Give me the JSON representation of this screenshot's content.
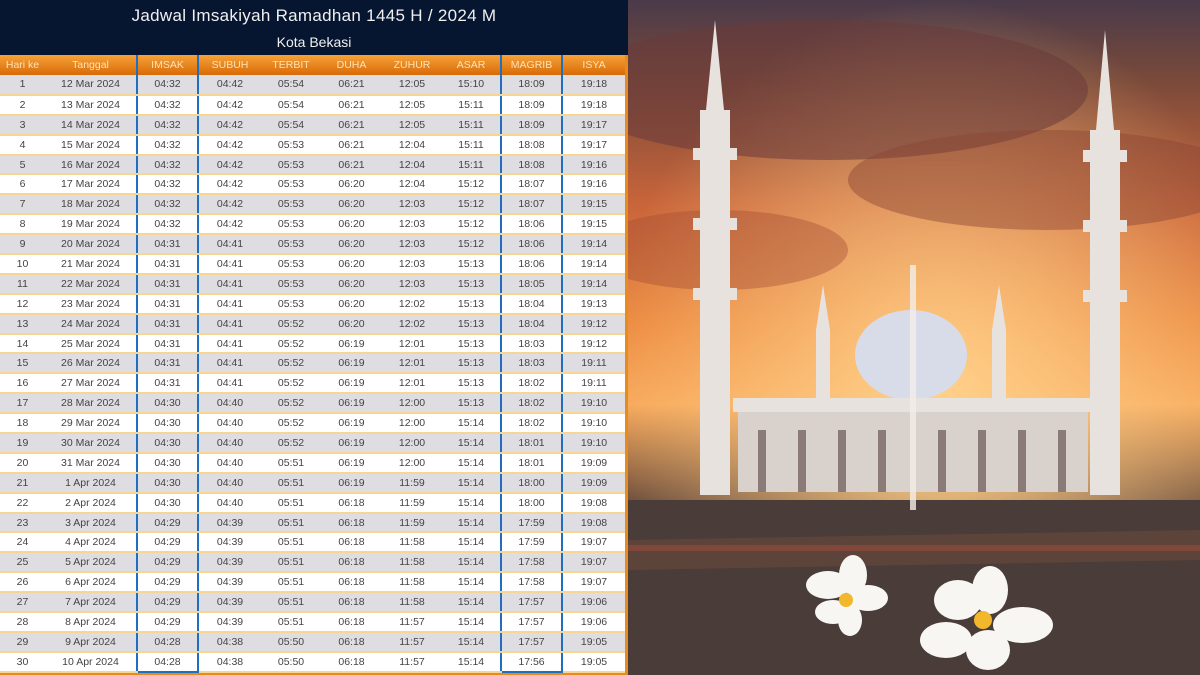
{
  "header": {
    "title": "Jadwal Imsakiyah Ramadhan 1445 H / 2024 M",
    "subtitle": "Kota Bekasi"
  },
  "columns": [
    "Hari ke",
    "Tanggal",
    "IMSAK",
    "SUBUH",
    "TERBIT",
    "DUHA",
    "ZUHUR",
    "ASAR",
    "MAGRIB",
    "ISYA"
  ],
  "highlighted_columns": [
    "IMSAK",
    "MAGRIB"
  ],
  "colors": {
    "banner": "#061530",
    "header_orange": "#e98a1d",
    "highlight_border": "#1e6fc0"
  },
  "rows": [
    [
      "1",
      "12 Mar 2024",
      "04:32",
      "04:42",
      "05:54",
      "06:21",
      "12:05",
      "15:10",
      "18:09",
      "19:18"
    ],
    [
      "2",
      "13 Mar 2024",
      "04:32",
      "04:42",
      "05:54",
      "06:21",
      "12:05",
      "15:11",
      "18:09",
      "19:18"
    ],
    [
      "3",
      "14 Mar 2024",
      "04:32",
      "04:42",
      "05:54",
      "06:21",
      "12:05",
      "15:11",
      "18:09",
      "19:17"
    ],
    [
      "4",
      "15 Mar 2024",
      "04:32",
      "04:42",
      "05:53",
      "06:21",
      "12:04",
      "15:11",
      "18:08",
      "19:17"
    ],
    [
      "5",
      "16 Mar 2024",
      "04:32",
      "04:42",
      "05:53",
      "06:21",
      "12:04",
      "15:11",
      "18:08",
      "19:16"
    ],
    [
      "6",
      "17 Mar 2024",
      "04:32",
      "04:42",
      "05:53",
      "06:20",
      "12:04",
      "15:12",
      "18:07",
      "19:16"
    ],
    [
      "7",
      "18 Mar 2024",
      "04:32",
      "04:42",
      "05:53",
      "06:20",
      "12:03",
      "15:12",
      "18:07",
      "19:15"
    ],
    [
      "8",
      "19 Mar 2024",
      "04:32",
      "04:42",
      "05:53",
      "06:20",
      "12:03",
      "15:12",
      "18:06",
      "19:15"
    ],
    [
      "9",
      "20 Mar 2024",
      "04:31",
      "04:41",
      "05:53",
      "06:20",
      "12:03",
      "15:12",
      "18:06",
      "19:14"
    ],
    [
      "10",
      "21 Mar 2024",
      "04:31",
      "04:41",
      "05:53",
      "06:20",
      "12:03",
      "15:13",
      "18:06",
      "19:14"
    ],
    [
      "11",
      "22 Mar 2024",
      "04:31",
      "04:41",
      "05:53",
      "06:20",
      "12:03",
      "15:13",
      "18:05",
      "19:14"
    ],
    [
      "12",
      "23 Mar 2024",
      "04:31",
      "04:41",
      "05:53",
      "06:20",
      "12:02",
      "15:13",
      "18:04",
      "19:13"
    ],
    [
      "13",
      "24 Mar 2024",
      "04:31",
      "04:41",
      "05:52",
      "06:20",
      "12:02",
      "15:13",
      "18:04",
      "19:12"
    ],
    [
      "14",
      "25 Mar 2024",
      "04:31",
      "04:41",
      "05:52",
      "06:19",
      "12:01",
      "15:13",
      "18:03",
      "19:12"
    ],
    [
      "15",
      "26 Mar 2024",
      "04:31",
      "04:41",
      "05:52",
      "06:19",
      "12:01",
      "15:13",
      "18:03",
      "19:11"
    ],
    [
      "16",
      "27 Mar 2024",
      "04:31",
      "04:41",
      "05:52",
      "06:19",
      "12:01",
      "15:13",
      "18:02",
      "19:11"
    ],
    [
      "17",
      "28 Mar 2024",
      "04:30",
      "04:40",
      "05:52",
      "06:19",
      "12:00",
      "15:13",
      "18:02",
      "19:10"
    ],
    [
      "18",
      "29 Mar 2024",
      "04:30",
      "04:40",
      "05:52",
      "06:19",
      "12:00",
      "15:14",
      "18:02",
      "19:10"
    ],
    [
      "19",
      "30 Mar 2024",
      "04:30",
      "04:40",
      "05:52",
      "06:19",
      "12:00",
      "15:14",
      "18:01",
      "19:10"
    ],
    [
      "20",
      "31 Mar 2024",
      "04:30",
      "04:40",
      "05:51",
      "06:19",
      "12:00",
      "15:14",
      "18:01",
      "19:09"
    ],
    [
      "21",
      "1 Apr 2024",
      "04:30",
      "04:40",
      "05:51",
      "06:19",
      "11:59",
      "15:14",
      "18:00",
      "19:09"
    ],
    [
      "22",
      "2 Apr 2024",
      "04:30",
      "04:40",
      "05:51",
      "06:18",
      "11:59",
      "15:14",
      "18:00",
      "19:08"
    ],
    [
      "23",
      "3 Apr 2024",
      "04:29",
      "04:39",
      "05:51",
      "06:18",
      "11:59",
      "15:14",
      "17:59",
      "19:08"
    ],
    [
      "24",
      "4 Apr 2024",
      "04:29",
      "04:39",
      "05:51",
      "06:18",
      "11:58",
      "15:14",
      "17:59",
      "19:07"
    ],
    [
      "25",
      "5 Apr 2024",
      "04:29",
      "04:39",
      "05:51",
      "06:18",
      "11:58",
      "15:14",
      "17:58",
      "19:07"
    ],
    [
      "26",
      "6 Apr 2024",
      "04:29",
      "04:39",
      "05:51",
      "06:18",
      "11:58",
      "15:14",
      "17:58",
      "19:07"
    ],
    [
      "27",
      "7 Apr 2024",
      "04:29",
      "04:39",
      "05:51",
      "06:18",
      "11:58",
      "15:14",
      "17:57",
      "19:06"
    ],
    [
      "28",
      "8 Apr 2024",
      "04:29",
      "04:39",
      "05:51",
      "06:18",
      "11:57",
      "15:14",
      "17:57",
      "19:06"
    ],
    [
      "29",
      "9 Apr 2024",
      "04:28",
      "04:38",
      "05:50",
      "06:18",
      "11:57",
      "15:14",
      "17:57",
      "19:05"
    ],
    [
      "30",
      "10 Apr 2024",
      "04:28",
      "04:38",
      "05:50",
      "06:18",
      "11:57",
      "15:14",
      "17:56",
      "19:05"
    ]
  ]
}
